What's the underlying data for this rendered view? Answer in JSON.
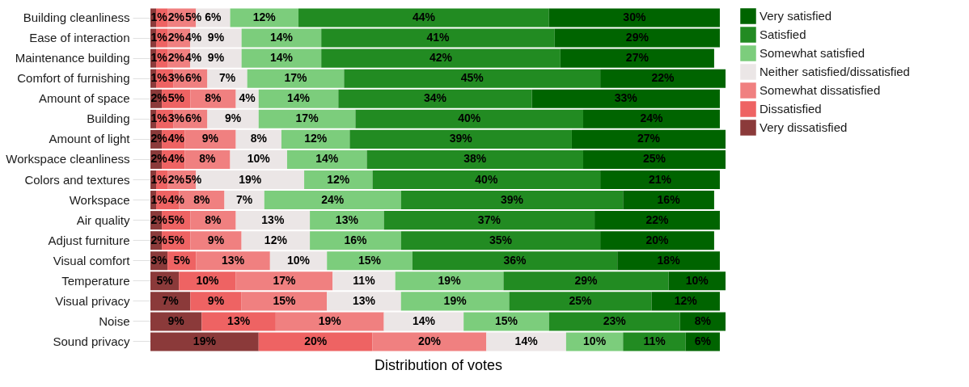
{
  "chart_data": {
    "type": "bar",
    "orientation": "horizontal",
    "stacked": true,
    "legend": "right",
    "xlabel": "Distribution of votes",
    "categories": [
      "Building cleanliness",
      "Ease of interaction",
      "Maintenance building",
      "Comfort of furnishing",
      "Amount of space",
      "Building",
      "Amount of light",
      "Workspace cleanliness",
      "Colors and textures",
      "Workspace",
      "Air quality",
      "Adjust furniture",
      "Visual comfort",
      "Temperature",
      "Visual privacy",
      "Noise",
      "Sound privacy"
    ],
    "series": [
      {
        "name": "Very dissatisfied",
        "color": "#8b3a3a",
        "values": [
          1,
          1,
          1,
          1,
          2,
          1,
          2,
          2,
          1,
          1,
          2,
          2,
          3,
          5,
          7,
          9,
          19
        ],
        "value_labels": [
          "1%",
          "1%",
          "1%",
          "1%",
          "2%",
          "1%",
          "2%",
          "2%",
          "1%",
          "1%",
          "2%",
          "2%",
          "3%",
          "5%",
          "7%",
          "9%",
          "19%"
        ]
      },
      {
        "name": "Dissatisfied",
        "color": "#ee6363",
        "values": [
          2,
          2,
          2,
          3,
          5,
          3,
          4,
          4,
          2,
          4,
          5,
          5,
          5,
          10,
          9,
          13,
          20
        ],
        "value_labels": [
          "2%",
          "2%",
          "2%",
          "3%",
          "5%",
          "3%",
          "4%",
          "4%",
          "2%",
          "4%",
          "5%",
          "5%",
          "5%",
          "10%",
          "9%",
          "13%",
          "20%"
        ]
      },
      {
        "name": "Somewhat dissatisfied",
        "color": "#f08080",
        "values": [
          5,
          4,
          4,
          6,
          8,
          6,
          9,
          8,
          5,
          8,
          8,
          9,
          13,
          17,
          15,
          19,
          20
        ],
        "value_labels": [
          "5%",
          "4%",
          "4%",
          "6%",
          "8%",
          "6%",
          "9%",
          "8%",
          "5%",
          "8%",
          "8%",
          "9%",
          "13%",
          "17%",
          "15%",
          "19%",
          "20%"
        ]
      },
      {
        "name": "Neither satisfied/dissatisfied",
        "color": "#ebe6e6",
        "values": [
          6,
          9,
          9,
          7,
          4,
          9,
          8,
          10,
          19,
          7,
          13,
          12,
          10,
          11,
          13,
          14,
          14
        ],
        "value_labels": [
          "6%",
          "9%",
          "9%",
          "7%",
          "4%",
          "9%",
          "8%",
          "10%",
          "19%",
          "7%",
          "13%",
          "12%",
          "10%",
          "11%",
          "13%",
          "14%",
          "14%"
        ]
      },
      {
        "name": "Somewhat satisfied",
        "color": "#7ccd7c",
        "values": [
          12,
          14,
          14,
          17,
          14,
          17,
          12,
          14,
          12,
          24,
          13,
          16,
          15,
          19,
          19,
          15,
          10
        ],
        "value_labels": [
          "12%",
          "14%",
          "14%",
          "17%",
          "14%",
          "17%",
          "12%",
          "14%",
          "12%",
          "24%",
          "13%",
          "16%",
          "15%",
          "19%",
          "19%",
          "15%",
          "10%"
        ]
      },
      {
        "name": "Satisfied",
        "color": "#228b22",
        "values": [
          44,
          41,
          42,
          45,
          34,
          40,
          39,
          38,
          40,
          39,
          37,
          35,
          36,
          29,
          25,
          23,
          11
        ],
        "value_labels": [
          "44%",
          "41%",
          "42%",
          "45%",
          "34%",
          "40%",
          "39%",
          "38%",
          "40%",
          "39%",
          "37%",
          "35%",
          "36%",
          "29%",
          "25%",
          "23%",
          "11%"
        ]
      },
      {
        "name": "Very satisfied",
        "color": "#006400",
        "values": [
          30,
          29,
          27,
          22,
          33,
          24,
          27,
          25,
          21,
          16,
          22,
          20,
          18,
          10,
          12,
          8,
          6
        ],
        "value_labels": [
          "30%",
          "29%",
          "27%",
          "22%",
          "33%",
          "24%",
          "27%",
          "25%",
          "21%",
          "16%",
          "22%",
          "20%",
          "18%",
          "10%",
          "12%",
          "8%",
          "6%"
        ]
      }
    ]
  }
}
